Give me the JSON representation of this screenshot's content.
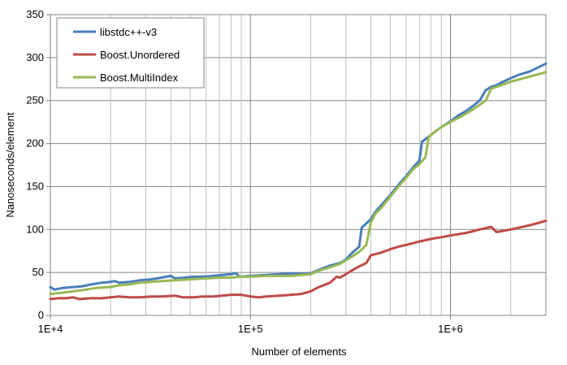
{
  "chart_data": {
    "type": "line",
    "xscale": "log",
    "xlim": [
      10000,
      3000000
    ],
    "ylim": [
      0,
      350
    ],
    "yticks": [
      0,
      50,
      100,
      150,
      200,
      250,
      300,
      350
    ],
    "xtick_labels": [
      {
        "value": 10000,
        "label": "1E+4"
      },
      {
        "value": 100000,
        "label": "1E+5"
      },
      {
        "value": 1000000,
        "label": "1E+6"
      }
    ],
    "xlabel": "Number of elements",
    "ylabel": "Nanoseconds/element",
    "grid": true,
    "legend_position": "top-left",
    "series": [
      {
        "name": "libstdc++-v3",
        "color": "#4a7ebb",
        "points": [
          [
            10000,
            33
          ],
          [
            10500,
            30
          ],
          [
            11500,
            32
          ],
          [
            13000,
            33
          ],
          [
            14500,
            34
          ],
          [
            16000,
            36
          ],
          [
            18000,
            38
          ],
          [
            20000,
            39
          ],
          [
            21000,
            40
          ],
          [
            22000,
            38
          ],
          [
            25000,
            39
          ],
          [
            28000,
            41
          ],
          [
            32000,
            42
          ],
          [
            36000,
            44
          ],
          [
            40000,
            46
          ],
          [
            42000,
            43
          ],
          [
            47000,
            44
          ],
          [
            52000,
            45
          ],
          [
            58000,
            45
          ],
          [
            65000,
            46
          ],
          [
            72000,
            47
          ],
          [
            80000,
            48
          ],
          [
            85000,
            49
          ],
          [
            88000,
            45
          ],
          [
            100000,
            46
          ],
          [
            120000,
            47
          ],
          [
            140000,
            48
          ],
          [
            160000,
            49
          ],
          [
            180000,
            48
          ],
          [
            200000,
            49
          ],
          [
            220000,
            53
          ],
          [
            250000,
            58
          ],
          [
            280000,
            61
          ],
          [
            300000,
            65
          ],
          [
            320000,
            72
          ],
          [
            350000,
            80
          ],
          [
            360000,
            102
          ],
          [
            400000,
            112
          ],
          [
            420000,
            120
          ],
          [
            450000,
            128
          ],
          [
            500000,
            140
          ],
          [
            550000,
            152
          ],
          [
            600000,
            162
          ],
          [
            650000,
            172
          ],
          [
            700000,
            180
          ],
          [
            720000,
            202
          ],
          [
            800000,
            210
          ],
          [
            850000,
            215
          ],
          [
            900000,
            219
          ],
          [
            1000000,
            226
          ],
          [
            1100000,
            233
          ],
          [
            1200000,
            238
          ],
          [
            1300000,
            244
          ],
          [
            1400000,
            250
          ],
          [
            1500000,
            262
          ],
          [
            1600000,
            266
          ],
          [
            1700000,
            268
          ],
          [
            1800000,
            271
          ],
          [
            2000000,
            276
          ],
          [
            2200000,
            280
          ],
          [
            2500000,
            284
          ],
          [
            3000000,
            293
          ]
        ]
      },
      {
        "name": "Boost.Unordered",
        "color": "#be4b48",
        "points": [
          [
            10000,
            19
          ],
          [
            11000,
            20
          ],
          [
            12000,
            20
          ],
          [
            13000,
            21
          ],
          [
            14000,
            19
          ],
          [
            16000,
            20
          ],
          [
            18000,
            20
          ],
          [
            20000,
            21
          ],
          [
            22000,
            22
          ],
          [
            25000,
            21
          ],
          [
            28000,
            21
          ],
          [
            32000,
            22
          ],
          [
            36000,
            22
          ],
          [
            42000,
            23
          ],
          [
            46000,
            21
          ],
          [
            52000,
            21
          ],
          [
            58000,
            22
          ],
          [
            65000,
            22
          ],
          [
            72000,
            23
          ],
          [
            80000,
            24
          ],
          [
            90000,
            24
          ],
          [
            100000,
            22
          ],
          [
            110000,
            21
          ],
          [
            120000,
            22
          ],
          [
            140000,
            23
          ],
          [
            160000,
            24
          ],
          [
            180000,
            25
          ],
          [
            200000,
            28
          ],
          [
            220000,
            33
          ],
          [
            250000,
            38
          ],
          [
            270000,
            45
          ],
          [
            280000,
            44
          ],
          [
            300000,
            48
          ],
          [
            320000,
            52
          ],
          [
            350000,
            57
          ],
          [
            380000,
            61
          ],
          [
            400000,
            70
          ],
          [
            450000,
            73
          ],
          [
            500000,
            77
          ],
          [
            550000,
            80
          ],
          [
            600000,
            82
          ],
          [
            700000,
            86
          ],
          [
            800000,
            89
          ],
          [
            900000,
            91
          ],
          [
            1000000,
            93
          ],
          [
            1200000,
            96
          ],
          [
            1400000,
            100
          ],
          [
            1600000,
            103
          ],
          [
            1700000,
            97
          ],
          [
            2000000,
            100
          ],
          [
            2500000,
            105
          ],
          [
            3000000,
            110
          ]
        ]
      },
      {
        "name": "Boost.MultiIndex",
        "color": "#98b954",
        "points": [
          [
            10000,
            25
          ],
          [
            11000,
            26
          ],
          [
            12000,
            27
          ],
          [
            13000,
            28
          ],
          [
            15000,
            30
          ],
          [
            17000,
            32
          ],
          [
            20000,
            33
          ],
          [
            22000,
            35
          ],
          [
            25000,
            36
          ],
          [
            28000,
            38
          ],
          [
            32000,
            39
          ],
          [
            36000,
            40
          ],
          [
            42000,
            41
          ],
          [
            50000,
            42
          ],
          [
            60000,
            43
          ],
          [
            70000,
            44
          ],
          [
            80000,
            44
          ],
          [
            90000,
            45
          ],
          [
            100000,
            45
          ],
          [
            120000,
            46
          ],
          [
            140000,
            46
          ],
          [
            160000,
            46
          ],
          [
            180000,
            47
          ],
          [
            200000,
            48
          ],
          [
            220000,
            52
          ],
          [
            250000,
            56
          ],
          [
            280000,
            60
          ],
          [
            300000,
            64
          ],
          [
            320000,
            68
          ],
          [
            350000,
            74
          ],
          [
            380000,
            82
          ],
          [
            400000,
            108
          ],
          [
            420000,
            118
          ],
          [
            450000,
            125
          ],
          [
            500000,
            138
          ],
          [
            550000,
            150
          ],
          [
            600000,
            160
          ],
          [
            650000,
            170
          ],
          [
            700000,
            176
          ],
          [
            750000,
            184
          ],
          [
            780000,
            208
          ],
          [
            850000,
            215
          ],
          [
            900000,
            219
          ],
          [
            1000000,
            225
          ],
          [
            1100000,
            230
          ],
          [
            1200000,
            235
          ],
          [
            1300000,
            240
          ],
          [
            1400000,
            245
          ],
          [
            1500000,
            250
          ],
          [
            1600000,
            264
          ],
          [
            1700000,
            266
          ],
          [
            1800000,
            268
          ],
          [
            2000000,
            272
          ],
          [
            2500000,
            278
          ],
          [
            3000000,
            283
          ]
        ]
      }
    ]
  }
}
